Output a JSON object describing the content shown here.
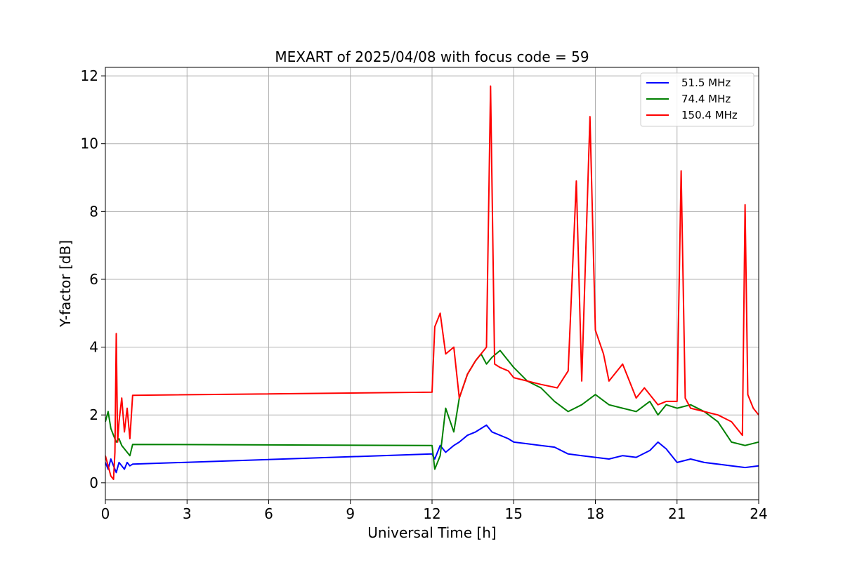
{
  "chart_data": {
    "type": "line",
    "title": "MEXART of 2025/04/08 with focus code = 59",
    "xlabel": "Universal Time [h]",
    "ylabel": "Y-factor [dB]",
    "xlim": [
      0,
      24
    ],
    "ylim": [
      -0.5,
      12.25
    ],
    "xticks": [
      0,
      3,
      6,
      9,
      12,
      15,
      18,
      21,
      24
    ],
    "yticks": [
      0,
      2,
      4,
      6,
      8,
      10,
      12
    ],
    "grid": true,
    "legend_position": "top-right",
    "series": [
      {
        "name": " 51.5 MHz",
        "color": "#0000ff",
        "x": [
          0.0,
          0.1,
          0.2,
          0.3,
          0.4,
          0.5,
          0.6,
          0.7,
          0.8,
          0.9,
          1.0,
          12.0,
          12.1,
          12.3,
          12.5,
          12.8,
          13.0,
          13.3,
          13.6,
          13.8,
          14.0,
          14.2,
          14.5,
          14.8,
          15.0,
          15.5,
          16.0,
          16.5,
          17.0,
          17.5,
          18.0,
          18.5,
          19.0,
          19.5,
          20.0,
          20.3,
          20.6,
          21.0,
          21.5,
          22.0,
          22.5,
          23.0,
          23.5,
          24.0
        ],
        "y": [
          0.6,
          0.4,
          0.7,
          0.5,
          0.3,
          0.6,
          0.5,
          0.4,
          0.6,
          0.5,
          0.55,
          0.85,
          0.7,
          1.1,
          0.9,
          1.1,
          1.2,
          1.4,
          1.5,
          1.6,
          1.7,
          1.5,
          1.4,
          1.3,
          1.2,
          1.15,
          1.1,
          1.05,
          0.85,
          0.8,
          0.75,
          0.7,
          0.8,
          0.75,
          0.95,
          1.2,
          1.0,
          0.6,
          0.7,
          0.6,
          0.55,
          0.5,
          0.45,
          0.5
        ]
      },
      {
        "name": " 74.4 MHz",
        "color": "#008000",
        "x": [
          0.0,
          0.1,
          0.2,
          0.3,
          0.4,
          0.5,
          0.6,
          0.7,
          0.8,
          0.9,
          1.0,
          12.0,
          12.1,
          12.3,
          12.5,
          12.8,
          13.0,
          13.3,
          13.6,
          13.8,
          14.0,
          14.2,
          14.5,
          14.8,
          15.0,
          15.5,
          16.0,
          16.5,
          17.0,
          17.5,
          18.0,
          18.5,
          19.0,
          19.5,
          20.0,
          20.3,
          20.6,
          21.0,
          21.5,
          22.0,
          22.5,
          23.0,
          23.5,
          24.0
        ],
        "y": [
          1.8,
          2.1,
          1.6,
          1.4,
          1.2,
          1.3,
          1.1,
          1.0,
          0.9,
          0.8,
          1.13,
          1.1,
          0.4,
          0.8,
          2.2,
          1.5,
          2.5,
          3.2,
          3.6,
          3.8,
          3.5,
          3.7,
          3.9,
          3.6,
          3.4,
          3.0,
          2.8,
          2.4,
          2.1,
          2.3,
          2.6,
          2.3,
          2.2,
          2.1,
          2.4,
          2.0,
          2.3,
          2.2,
          2.3,
          2.1,
          1.8,
          1.2,
          1.1,
          1.2
        ]
      },
      {
        "name": "150.4 MHz",
        "color": "#ff0000",
        "x": [
          0.0,
          0.1,
          0.2,
          0.3,
          0.35,
          0.4,
          0.45,
          0.5,
          0.6,
          0.7,
          0.8,
          0.9,
          1.0,
          12.0,
          12.1,
          12.3,
          12.5,
          12.8,
          13.0,
          13.3,
          13.6,
          14.0,
          14.15,
          14.3,
          14.5,
          14.8,
          15.0,
          15.5,
          16.0,
          16.6,
          17.0,
          17.3,
          17.5,
          17.8,
          18.0,
          18.3,
          18.5,
          19.0,
          19.5,
          19.8,
          20.0,
          20.3,
          20.6,
          21.0,
          21.15,
          21.3,
          21.5,
          22.0,
          22.5,
          23.0,
          23.4,
          23.5,
          23.6,
          23.8,
          24.0
        ],
        "y": [
          0.8,
          0.5,
          0.2,
          0.1,
          0.9,
          4.4,
          1.2,
          1.8,
          2.5,
          1.5,
          2.2,
          1.3,
          2.58,
          2.67,
          4.6,
          5.0,
          3.8,
          4.0,
          2.5,
          3.2,
          3.6,
          4.0,
          11.7,
          3.5,
          3.4,
          3.3,
          3.1,
          3.0,
          2.9,
          2.8,
          3.3,
          8.9,
          3.0,
          10.8,
          4.5,
          3.8,
          3.0,
          3.5,
          2.5,
          2.8,
          2.6,
          2.3,
          2.4,
          2.4,
          9.2,
          2.5,
          2.2,
          2.1,
          2.0,
          1.8,
          1.4,
          8.2,
          2.6,
          2.2,
          2.0
        ]
      }
    ]
  }
}
